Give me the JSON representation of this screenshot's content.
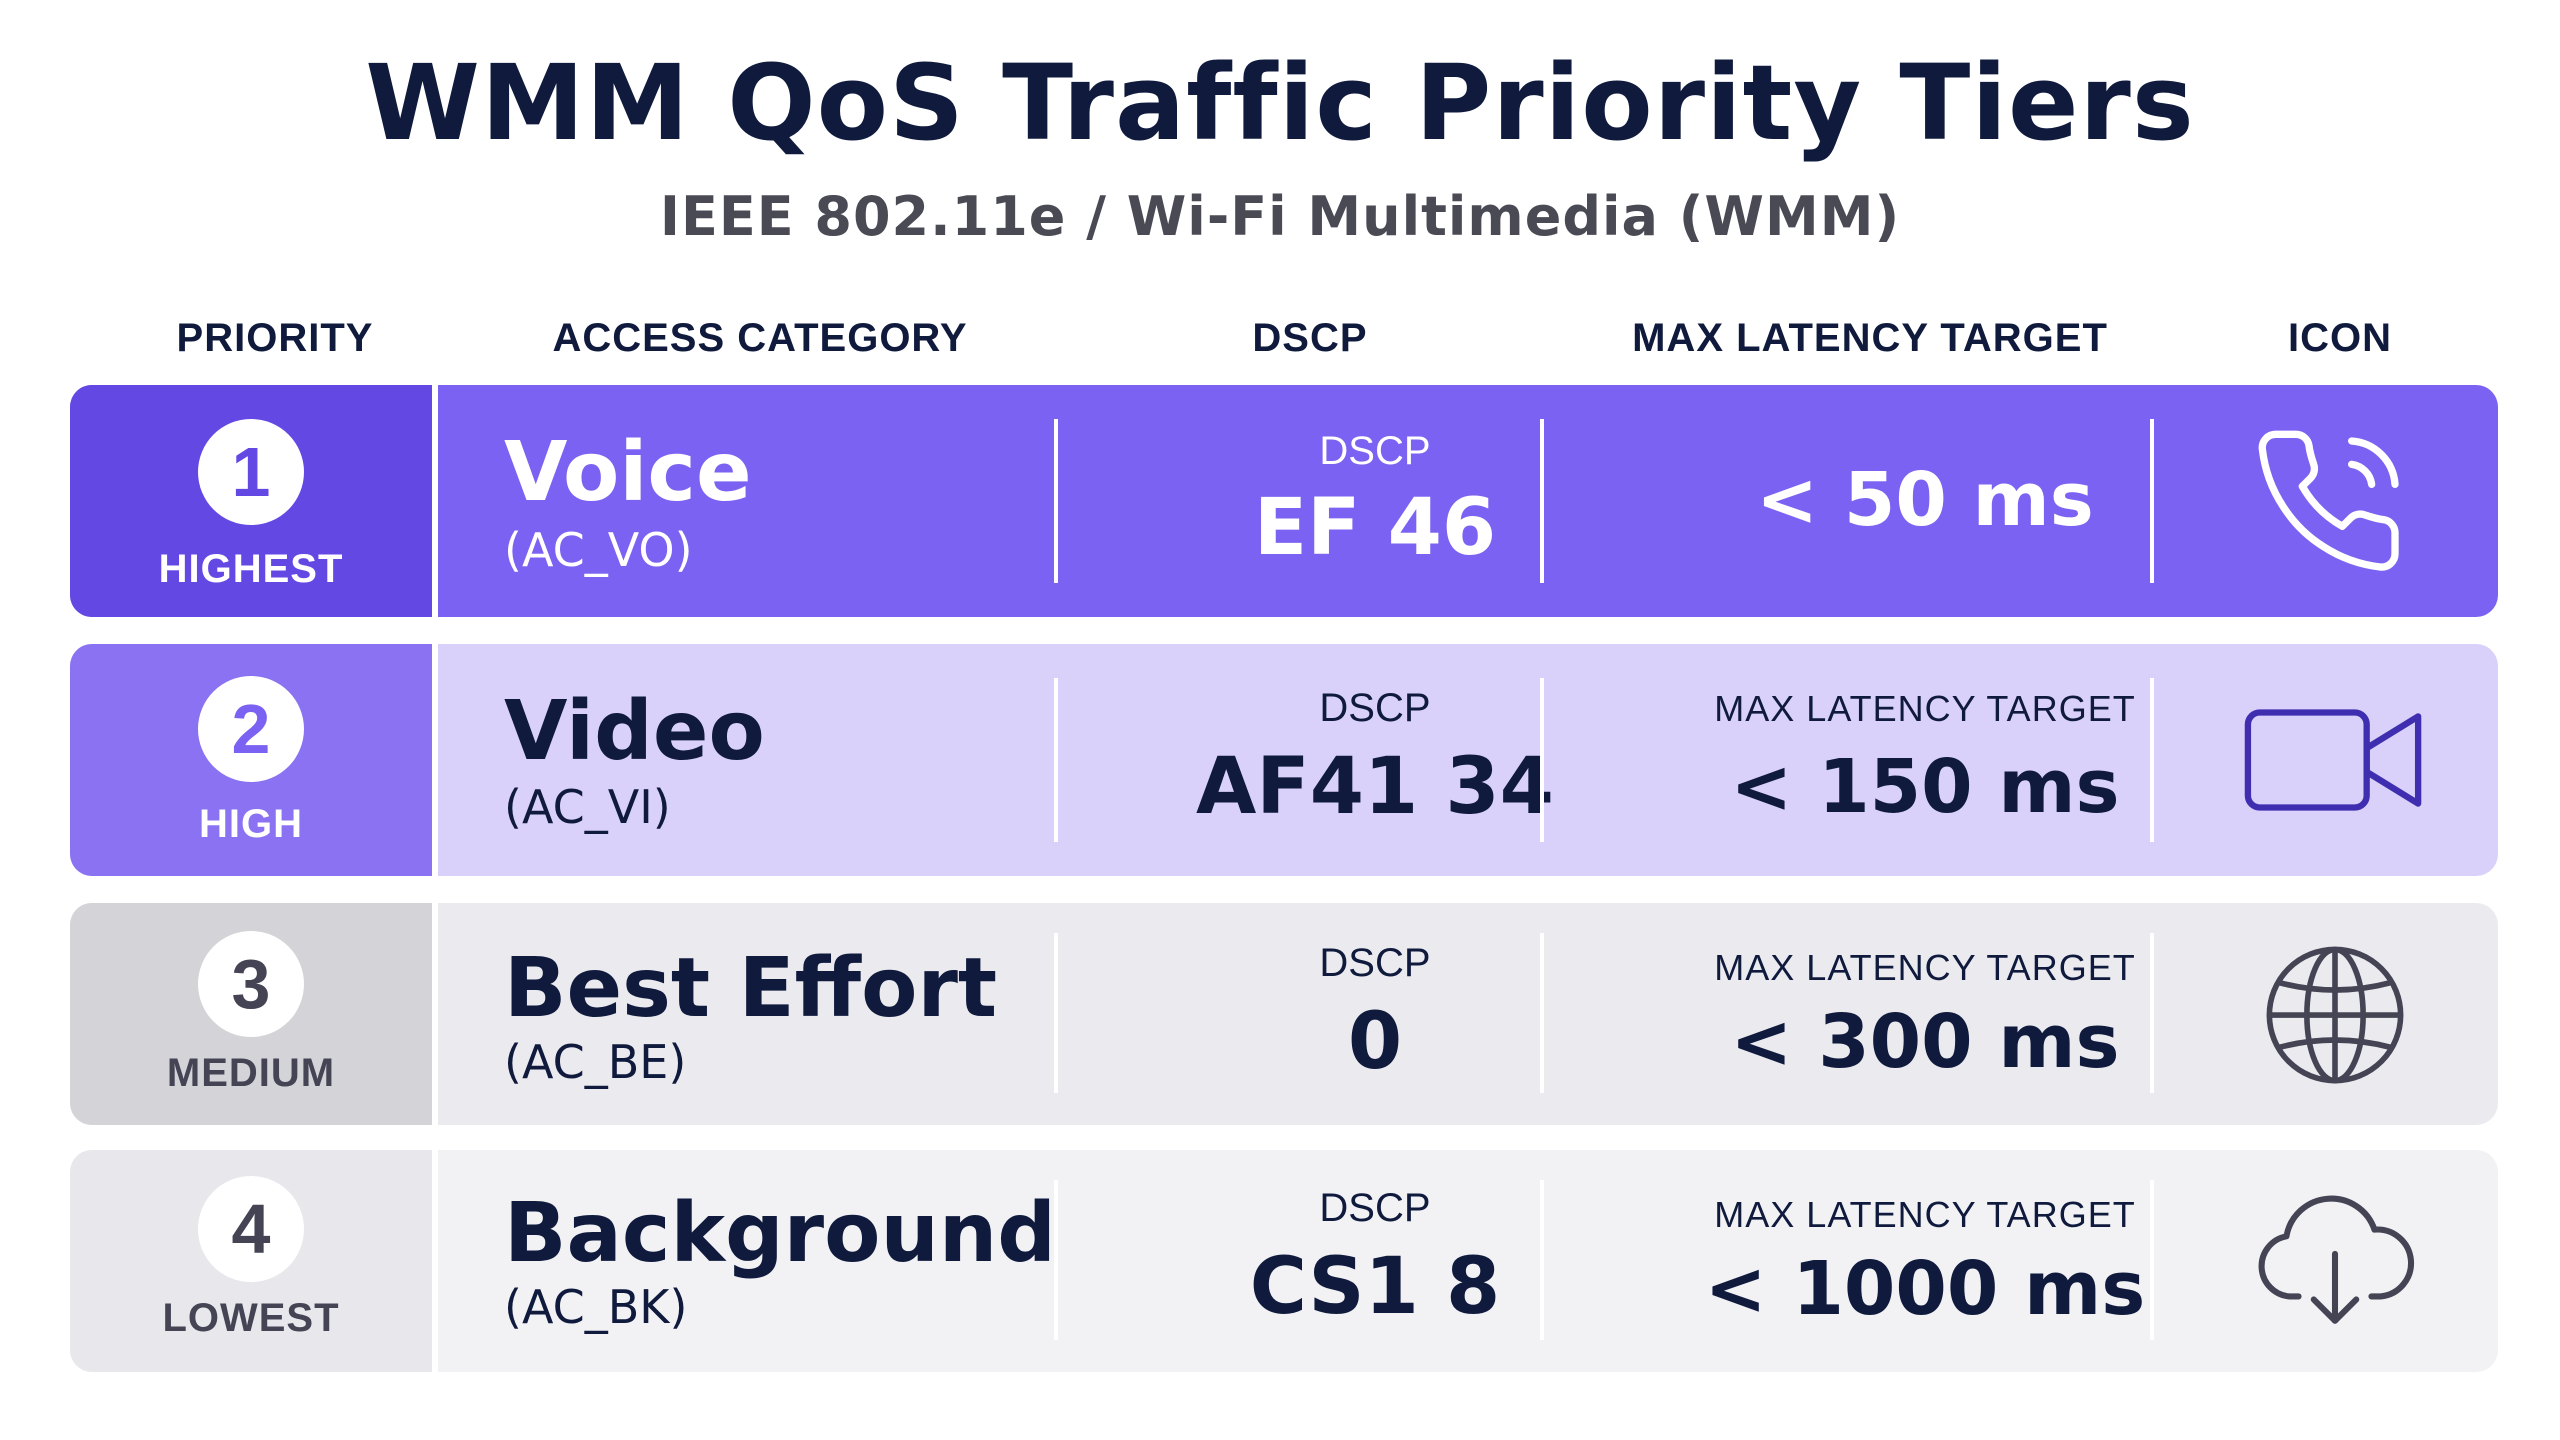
{
  "title": "WMM QoS Traffic Priority Tiers",
  "subtitle": "IEEE 802.11e / Wi-Fi Multimedia (WMM)",
  "headers": {
    "priority": "PRIORITY",
    "category": "ACCESS CATEGORY",
    "dscp": "DSCP",
    "latency": "MAX LATENCY TARGET",
    "icon": "ICON"
  },
  "rows": [
    {
      "num": "1",
      "level": "HIGHEST",
      "category": "Voice",
      "code": "(AC_VO)",
      "dscp_label": "DSCP",
      "dscp": "EF 46",
      "latency_label": "",
      "latency": "< 50 ms",
      "icon": "phone-ringing-icon",
      "colors": {
        "prio_bg": "#6448e4",
        "row_bg": "#7b62f2",
        "text": "#ffffff",
        "circle_text": "#6448e4",
        "divider": "#ffffff"
      }
    },
    {
      "num": "2",
      "level": "HIGH",
      "category": "Video",
      "code": "(AC_VI)",
      "dscp_label": "DSCP",
      "dscp": "AF41 34",
      "latency_label": "MAX LATENCY TARGET",
      "latency": "< 150 ms",
      "icon": "video-camera-icon",
      "colors": {
        "prio_bg": "#8a72f2",
        "row_bg": "#d9d1fa",
        "text": "#0f1a3d",
        "circle_text": "#7b62f2",
        "divider": "#ffffff"
      }
    },
    {
      "num": "3",
      "level": "MEDIUM",
      "category": "Best Effort",
      "code": "(AC_BE)",
      "dscp_label": "DSCP",
      "dscp": "0",
      "latency_label": "MAX LATENCY TARGET",
      "latency": "< 300 ms",
      "icon": "globe-icon",
      "colors": {
        "prio_bg": "#d3d3d8",
        "row_bg": "#ebebef",
        "text": "#0f1a3d",
        "circle_text": "#444455",
        "divider": "#ffffff"
      }
    },
    {
      "num": "4",
      "level": "LOWEST",
      "category": "Background",
      "code": "(AC_BK)",
      "dscp_label": "DSCP",
      "dscp": "CS1 8",
      "latency_label": "MAX LATENCY TARGET",
      "latency": "< 1000 ms",
      "icon": "cloud-download-icon",
      "colors": {
        "prio_bg": "#e8e8ec",
        "row_bg": "#f2f2f5",
        "text": "#0f1a3d",
        "circle_text": "#444455",
        "divider": "#ffffff"
      }
    }
  ]
}
